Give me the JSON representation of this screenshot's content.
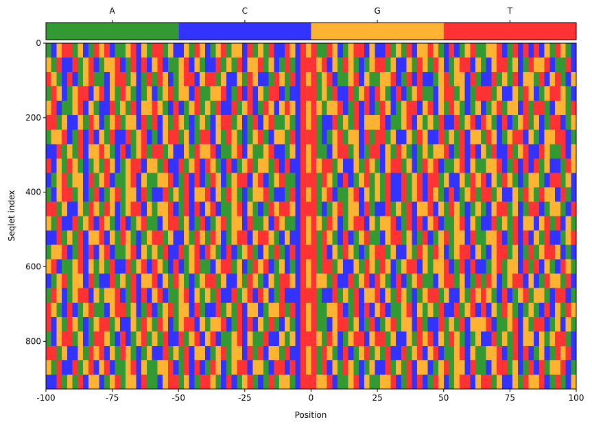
{
  "chart_data": {
    "type": "heatmap",
    "xlabel": "Position",
    "ylabel": "Seqlet index",
    "xlim": [
      -100,
      100
    ],
    "xticks": [
      -100,
      -75,
      -50,
      -25,
      0,
      25,
      50,
      75,
      100
    ],
    "ylim": [
      928,
      0
    ],
    "yticks": [
      0,
      200,
      400,
      600,
      800
    ],
    "colorbar": {
      "categories": [
        "A",
        "C",
        "G",
        "T"
      ]
    },
    "colors": {
      "A": "#339933",
      "C": "#3333ff",
      "G": "#ffb333",
      "T": "#ff3333"
    },
    "rows": [
      "ACGTTAGCATGTCAAGTCGATTAGCCGATGCAGTAGGCTAGATCCTGCTGTAATGCAGTTCGCCTAGATCGGTGACTCAGTAAGGTCATCTCTCGATGAC",
      "GATCCTAGTCAGGTCATCTCGTCAAGTCGACCTAGATCGGTAGCATACTTTGTCGATGACAGTTAGCCGATGATGCAGTTCGACGTTAGCATGGTCAATC",
      "TGACTCAGTAACGTTAGCATATGCAGTTCGTTAGCCGATGCCATGATCTGTAGTCAAGTCGAAGGTCATCTCCAGTAGGCTACCTAGATCGGATCGTACG",
      "ATGCAGTTCGTCGATGACAGCAGTAGGCTAAGGTCATCTCGATTCACCTTTAGATCCTAGTCTGACTCAGTAACGTTAGCATTTAGCCGATGCAGTTGAC",
      "GTCAAGTCGACCTAGATCGGTGACTCAGTAGATCCTAGTCATGCGTGCTGTGAGGTCATCTCATGCAGTTCGTCGATGACAGCAGTAGGCTATTACGGAT",
      "TTAGCCGATGCAGTAGGCTATCGATGACAGACGTTAGCATCGTAAGACTGTACCTAGATCGGGTCAAGTCGAGATCCTAGTCTGACTCAGTAGCATTCAG",
      "AGGTCATCTCGATCCTAGTCACGTTAGCATTCGATGACAGTACGGATCTTTACAGTAGGCTATTAGCCGATGCCTAGATCGGATGCAGTTCGACGGTTCA",
      "CCTAGATCGGTGACTCAGTATTAGCCGATGGTCAAGTCGAAGTCCAGCTGTAACGTTAGCATTCGATGACAGAGGTCATCTCGATCCTAGTCCTGAATCG",
      "TCGATGACAGATGCAGTTCGGATCCTAGTCTGACTCAGTAGGATCTCCTGTGTTAGCCGATGACGTTAGCATGTCAAGTCGAAGGTCATCTCTAGCCATG",
      "CAGTAGGCTAGTCAAGTCGAAGGTCATCTCATGCAGTTCGTCAGTAACTTTATGACTCAGTAGATCCTAGTCTTAGCCGATGTCGATGACAGGACTTAGC",
      "ACGTTAGCATCAGTAGGCTACCTAGATCGGTCGATGACAGGTACCATCTGTAGTCAAGTCGAGATCCTAGTCTGACTCAGTATTAGCCGATGATGGCTAC",
      "TTAGCCGATGATGCAGTTCGAGGTCATCTCGTCAAGTCGACATGTTGCTTTACAGTAGGCTACCTAGATCGGTCGATGACAGACGTTAGCATTCAGGACT",
      "GATCCTAGTCTGACTCAGTAACGTTAGCATCAGTAGGCTAAGCTGAACTGTGATGCAGTTCGAGGTCATCTCGTCAAGTCGACCTAGATCGGCGTATCGA",
      "CCTAGATCGGTCGATGACAGTTAGCCGATGATGCAGTTCGTTGACGCCTGTATGACTCAGTAACGTTAGCATCAGTAGGCTAAGGTCATCTCGATCCAGT",
      "AGGTCATCTCGTCAAGTCGAGATCCTAGTCTGACTCAGTACGATACTCTTTATCGATGACAGTTAGCCGATGATGCAGTTCGACGTTAGCATAGTTGCAC",
      "GTCAAGTCGAGATCCTAGTCTGACTCAGTAACGTTAGCATGTCAGCACTGTATTAGCCGATGATGCAGTTCGAGGTCATCTCCAGTAGGCTATCGACTGA",
      "CAGTAGGCTACCTAGATCGGTCGATGACAGTTAGCCGATGACGATTGCTGTGGATCCTAGTCTGACTCAGTAACGTTAGCATATGCAGTTCGCATGGATC",
      "ATGCAGTTCGAGGTCATCTCGTCAAGTCGAGATCCTAGTCTGCATCCCTTTACCTAGATCGGTCGATGACAGTTAGCCGATGTGACTCAGTAGGACTTCA",
      "TGACTCAGTAACGTTAGCATCAGTAGGCTACCTAGATCGGCAGGTATCTGTAAGGTCATCTCGTCAAGTCGAGATCCTAGTCTCGATGACAGACTCGATG",
      "TCGATGACAGTTAGCCGATGATGCAGTTCGAGGTCATCTCGATACGACTGTAACGTTAGCATCAGTAGGCTACCTAGATCGGGTCAAGTCGATTCAGCGA",
      "ACGTTAGCATTGACTCAGTAGATCCTAGTCGTCAAGTCGAATCCGAGCTTTGATGCAGTTCGTTAGCCGATGTCGATGACAGCCTAGATCGGCGAGTTAC",
      "TTAGCCGATGTCGATGACAGCCTAGATCGGCAGTAGGCTATCGGATCCTGTATGACTCAGTAGATCCTAGTCGTCAAGTCGAAGGTCATCTCAGCATGTC",
      "GATCCTAGTCGTCAAGTCGAAGGTCATCTCATGCAGTTCGGACTTCTCTGTATCGATGACAGCCTAGATCGGCAGTAGGCTAACGTTAGCATCTAGGTCA",
      "CCTAGATCGGCAGTAGGCTAACGTTAGCATTGACTCAGTACATAGGACTTTGGTCAAGTCGAAGGTCATCTCATGCAGTTCGTTAGCCGATGGTCATACG"
    ]
  }
}
